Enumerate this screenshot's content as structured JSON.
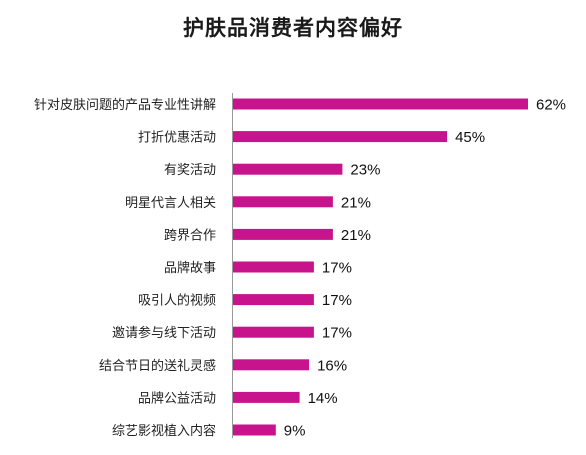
{
  "chart_data": {
    "type": "bar",
    "orientation": "horizontal",
    "title": "护肤品消费者内容偏好",
    "categories": [
      "针对皮肤问题的产品专业性讲解",
      "打折优惠活动",
      "有奖活动",
      "明星代言人相关",
      "跨界合作",
      "品牌故事",
      "吸引人的视频",
      "邀请参与线下活动",
      "结合节日的送礼灵感",
      "品牌公益活动",
      "综艺影视植入内容"
    ],
    "values": [
      62,
      45,
      23,
      21,
      21,
      17,
      17,
      17,
      16,
      14,
      9
    ],
    "value_labels": [
      "62%",
      "45%",
      "23%",
      "21%",
      "21%",
      "17%",
      "17%",
      "17%",
      "16%",
      "14%",
      "9%"
    ],
    "unit": "%",
    "xlim": [
      0,
      62
    ],
    "xlabel": "",
    "ylabel": "",
    "grid": false,
    "legend": "none",
    "bar_color": "#C8148C"
  }
}
